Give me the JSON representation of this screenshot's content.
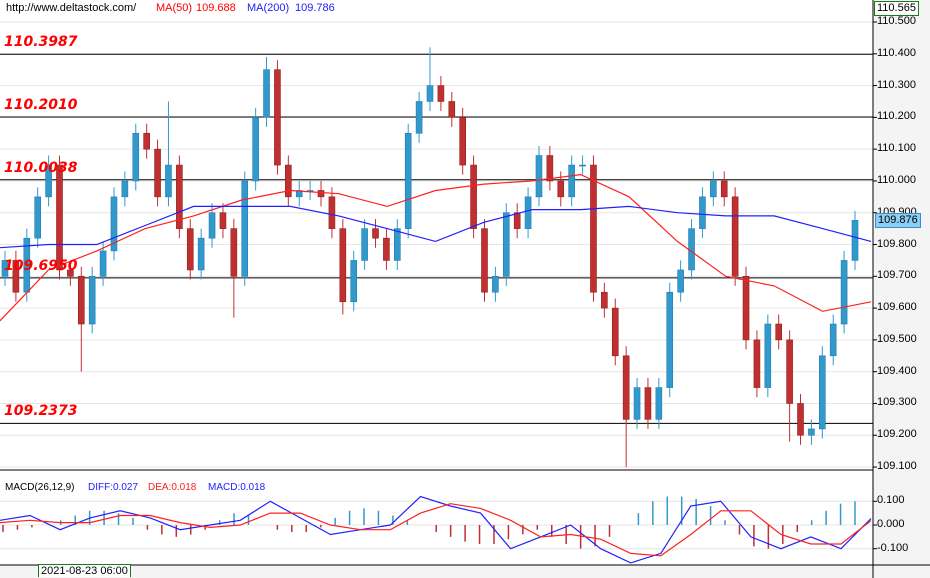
{
  "header": {
    "url": "http://www.deltastock.com/",
    "ma50_label": "MA(50)",
    "ma50_value": "109.688",
    "ma200_label": "MA(200)",
    "ma200_value": "109.786"
  },
  "colors": {
    "up": "#3399cc",
    "down": "#c03030",
    "ma50": "#ff2020",
    "ma200": "#2020ff",
    "level": "#ff0000",
    "grid": "#e6e6e6",
    "price_box": "#8ccff5"
  },
  "levels": [
    {
      "label": "110.3987",
      "value": 110.3987
    },
    {
      "label": "110.2010",
      "value": 110.201
    },
    {
      "label": "110.0038",
      "value": 110.0038
    },
    {
      "label": "109.6950",
      "value": 109.695
    },
    {
      "label": "109.2373",
      "value": 109.2373
    }
  ],
  "axis": {
    "top_value": "110.565",
    "current_price": "109.876",
    "current_value": 109.876,
    "ticks": [
      "110.500",
      "110.400",
      "110.300",
      "110.200",
      "110.100",
      "110.000",
      "109.900",
      "109.800",
      "109.700",
      "109.600",
      "109.500",
      "109.400",
      "109.300",
      "109.200",
      "109.100"
    ],
    "macd_ticks": [
      "0.100",
      "0.000",
      "-0.100"
    ]
  },
  "macd": {
    "title": "MACD(26,12,9)",
    "diff": "DIFF:0.027",
    "dea": "DEA:0.018",
    "macd": "MACD:0.018"
  },
  "time_axis": {
    "cursor_label": "2021-08-23 06:00"
  },
  "chart_data": {
    "type": "candlestick",
    "ylim": [
      109.1,
      110.5
    ],
    "closes": [
      109.75,
      109.65,
      109.82,
      109.95,
      110.05,
      109.72,
      109.7,
      109.55,
      109.7,
      109.78,
      109.95,
      110.0,
      110.15,
      110.1,
      109.95,
      110.05,
      109.85,
      109.72,
      109.82,
      109.9,
      109.85,
      109.7,
      110.0,
      110.2,
      110.35,
      110.05,
      109.95,
      109.97,
      109.97,
      109.95,
      109.85,
      109.62,
      109.75,
      109.85,
      109.82,
      109.75,
      109.85,
      110.15,
      110.25,
      110.3,
      110.25,
      110.2,
      110.05,
      109.85,
      109.65,
      109.7,
      109.9,
      109.85,
      109.95,
      110.08,
      110.0,
      109.95,
      110.05,
      110.05,
      109.65,
      109.6,
      109.45,
      109.25,
      109.35,
      109.25,
      109.35,
      109.65,
      109.72,
      109.85,
      109.95,
      110.0,
      109.95,
      109.7,
      109.5,
      109.35,
      109.55,
      109.5,
      109.3,
      109.2,
      109.22,
      109.45,
      109.55,
      109.75,
      109.876
    ],
    "spikes": {
      "7": 109.4,
      "15": 110.25,
      "21": 109.57,
      "24": 110.39,
      "31": 109.58,
      "39": 110.42,
      "57": 109.1,
      "72": 109.18,
      "77": 109.6
    },
    "ma50": [
      109.56,
      109.72,
      109.78,
      109.85,
      109.89,
      109.94,
      109.97,
      109.96,
      109.92,
      109.97,
      109.99,
      110.0,
      110.02,
      109.95,
      109.81,
      109.7,
      109.67,
      109.59,
      109.62
    ],
    "ma200": [
      109.79,
      109.8,
      109.8,
      109.86,
      109.92,
      109.92,
      109.92,
      109.89,
      109.85,
      109.81,
      109.87,
      109.91,
      109.91,
      109.92,
      109.9,
      109.89,
      109.89,
      109.85,
      109.81
    ],
    "macd_diff": [
      0.02,
      0.04,
      -0.02,
      0.03,
      0.06,
      0.03,
      -0.02,
      0.0,
      0.02,
      0.1,
      0.03,
      -0.04,
      -0.02,
      0.0,
      0.12,
      0.08,
      0.05,
      -0.1,
      -0.05,
      0.0,
      -0.1,
      -0.16,
      -0.12,
      0.08,
      0.1,
      -0.05,
      -0.1,
      -0.05,
      -0.1,
      0.027
    ],
    "macd_dea": [
      0.01,
      0.02,
      0.01,
      0.01,
      0.04,
      0.04,
      0.01,
      -0.01,
      0.0,
      0.05,
      0.05,
      0.0,
      -0.02,
      -0.02,
      0.05,
      0.09,
      0.07,
      0.02,
      -0.05,
      -0.04,
      -0.06,
      -0.12,
      -0.13,
      -0.04,
      0.06,
      0.06,
      -0.04,
      -0.08,
      -0.08,
      0.018
    ],
    "macd_hist": [
      -0.03,
      -0.02,
      -0.01,
      0.0,
      0.02,
      0.04,
      0.06,
      0.06,
      0.05,
      0.03,
      -0.02,
      -0.04,
      -0.05,
      -0.04,
      -0.02,
      0.02,
      0.05,
      0.04,
      0.0,
      -0.02,
      -0.03,
      -0.03,
      -0.01,
      0.03,
      0.06,
      0.07,
      0.06,
      0.04,
      0.02,
      0.0,
      -0.03,
      -0.05,
      -0.07,
      -0.08,
      -0.08,
      -0.06,
      -0.04,
      -0.02,
      -0.05,
      -0.08,
      -0.1,
      -0.09,
      -0.05,
      0.0,
      0.05,
      0.1,
      0.12,
      0.12,
      0.11,
      0.08,
      0.02,
      -0.04,
      -0.09,
      -0.1,
      -0.08,
      -0.03,
      0.02,
      0.06,
      0.09,
      0.1
    ]
  }
}
